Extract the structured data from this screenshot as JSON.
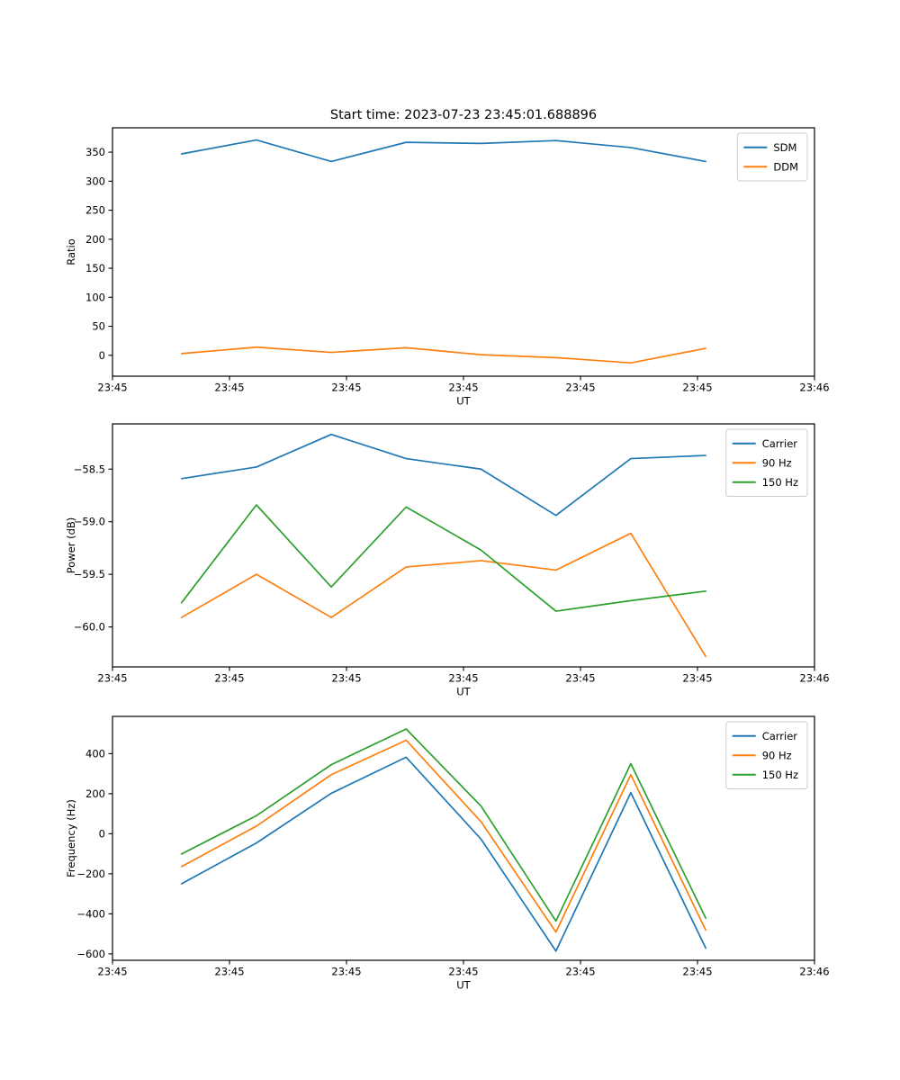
{
  "figure": {
    "title": "Start time: 2023-07-23 23:45:01.688896"
  },
  "chart_data": [
    {
      "type": "line",
      "title": "Start time: 2023-07-23 23:45:01.688896",
      "xlabel": "UT",
      "ylabel": "Ratio",
      "legend_position": "upper right",
      "grid": false,
      "x": [
        5.9,
        12.3,
        18.7,
        25.1,
        31.5,
        37.9,
        44.3,
        50.7
      ],
      "xlim": [
        0,
        60
      ],
      "xticks": [
        {
          "v": 0,
          "label": "23:45"
        },
        {
          "v": 10,
          "label": "23:45"
        },
        {
          "v": 20,
          "label": "23:45"
        },
        {
          "v": 30,
          "label": "23:45"
        },
        {
          "v": 40,
          "label": "23:45"
        },
        {
          "v": 50,
          "label": "23:45"
        },
        {
          "v": 60,
          "label": "23:46"
        }
      ],
      "ylim": [
        -36,
        392
      ],
      "yticks": [
        {
          "v": 0,
          "label": "0"
        },
        {
          "v": 50,
          "label": "50"
        },
        {
          "v": 100,
          "label": "100"
        },
        {
          "v": 150,
          "label": "150"
        },
        {
          "v": 200,
          "label": "200"
        },
        {
          "v": 250,
          "label": "250"
        },
        {
          "v": 300,
          "label": "300"
        },
        {
          "v": 350,
          "label": "350"
        }
      ],
      "series": [
        {
          "name": "SDM",
          "color": "#1f77b4",
          "values": [
            347,
            371,
            334,
            367,
            365,
            370,
            358,
            334
          ]
        },
        {
          "name": "DDM",
          "color": "#ff7f0e",
          "values": [
            3,
            14,
            5,
            13,
            1,
            -4,
            -13,
            12
          ]
        }
      ]
    },
    {
      "type": "line",
      "xlabel": "UT",
      "ylabel": "Power (dB)",
      "legend_position": "upper right",
      "grid": false,
      "x": [
        5.9,
        12.3,
        18.7,
        25.1,
        31.5,
        37.9,
        44.3,
        50.7
      ],
      "xlim": [
        0,
        60
      ],
      "xticks": [
        {
          "v": 0,
          "label": "23:45"
        },
        {
          "v": 10,
          "label": "23:45"
        },
        {
          "v": 20,
          "label": "23:45"
        },
        {
          "v": 30,
          "label": "23:45"
        },
        {
          "v": 40,
          "label": "23:45"
        },
        {
          "v": 50,
          "label": "23:45"
        },
        {
          "v": 60,
          "label": "23:46"
        }
      ],
      "ylim": [
        -60.38,
        -58.07
      ],
      "yticks": [
        {
          "v": -60.0,
          "label": "−60.0"
        },
        {
          "v": -59.5,
          "label": "−59.5"
        },
        {
          "v": -59.0,
          "label": "−59.0"
        },
        {
          "v": -58.5,
          "label": "−58.5"
        }
      ],
      "series": [
        {
          "name": "Carrier",
          "color": "#1f77b4",
          "values": [
            -58.59,
            -58.48,
            -58.17,
            -58.4,
            -58.5,
            -58.94,
            -58.4,
            -58.37
          ]
        },
        {
          "name": "90 Hz",
          "color": "#ff7f0e",
          "values": [
            -59.91,
            -59.5,
            -59.91,
            -59.43,
            -59.37,
            -59.46,
            -59.11,
            -60.28
          ]
        },
        {
          "name": "150 Hz",
          "color": "#2ca02c",
          "values": [
            -59.77,
            -58.84,
            -59.62,
            -58.86,
            -59.27,
            -59.85,
            -59.75,
            -59.66
          ]
        }
      ]
    },
    {
      "type": "line",
      "xlabel": "UT",
      "ylabel": "Frequency (Hz)",
      "legend_position": "upper right",
      "grid": false,
      "x": [
        5.9,
        12.3,
        18.7,
        25.1,
        31.5,
        37.9,
        44.3,
        50.7
      ],
      "xlim": [
        0,
        60
      ],
      "xticks": [
        {
          "v": 0,
          "label": "23:45"
        },
        {
          "v": 10,
          "label": "23:45"
        },
        {
          "v": 20,
          "label": "23:45"
        },
        {
          "v": 30,
          "label": "23:45"
        },
        {
          "v": 40,
          "label": "23:45"
        },
        {
          "v": 50,
          "label": "23:45"
        },
        {
          "v": 60,
          "label": "23:46"
        }
      ],
      "ylim": [
        -632,
        586
      ],
      "yticks": [
        {
          "v": -600,
          "label": "−600"
        },
        {
          "v": -400,
          "label": "−400"
        },
        {
          "v": -200,
          "label": "−200"
        },
        {
          "v": 0,
          "label": "0"
        },
        {
          "v": 200,
          "label": "200"
        },
        {
          "v": 400,
          "label": "400"
        }
      ],
      "series": [
        {
          "name": "Carrier",
          "color": "#1f77b4",
          "values": [
            -250,
            -46,
            202,
            382,
            -27,
            -586,
            205,
            -571
          ]
        },
        {
          "name": "90 Hz",
          "color": "#ff7f0e",
          "values": [
            -164,
            38,
            295,
            467,
            60,
            -491,
            295,
            -481
          ]
        },
        {
          "name": "150 Hz",
          "color": "#2ca02c",
          "values": [
            -101,
            90,
            345,
            523,
            138,
            -436,
            350,
            -421
          ]
        }
      ]
    }
  ]
}
